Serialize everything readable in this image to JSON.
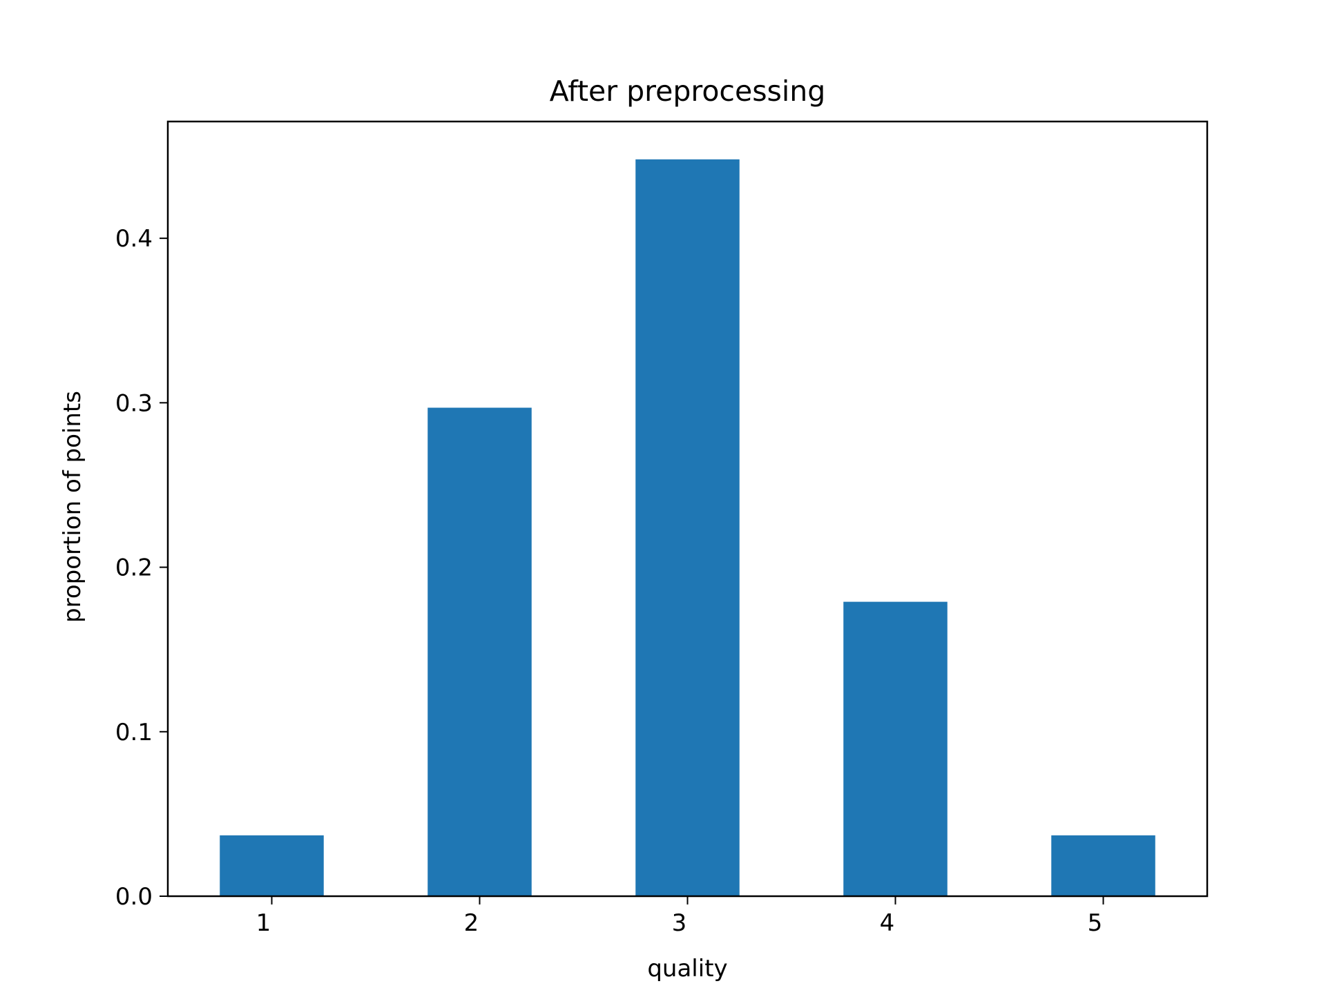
{
  "chart_data": {
    "type": "bar",
    "title": "After preprocessing",
    "xlabel": "quality",
    "ylabel": "proportion of points",
    "categories": [
      "1",
      "2",
      "3",
      "4",
      "5"
    ],
    "values": [
      0.037,
      0.297,
      0.448,
      0.179,
      0.037
    ],
    "ylim": [
      0,
      0.471
    ],
    "yticks": [
      0.0,
      0.1,
      0.2,
      0.3,
      0.4
    ],
    "ytick_labels": [
      "0.0",
      "0.1",
      "0.2",
      "0.3",
      "0.4"
    ],
    "bar_color": "#1f77b4",
    "grid": false,
    "legend": "none"
  }
}
